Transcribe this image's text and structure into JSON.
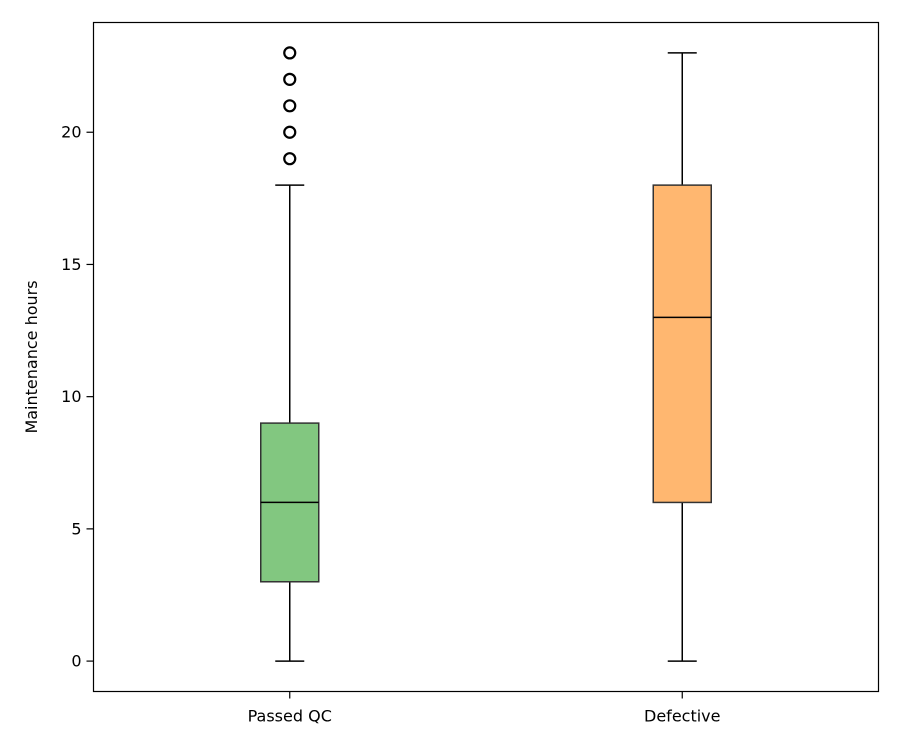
{
  "chart_data": {
    "type": "box",
    "title": "",
    "xlabel": "",
    "ylabel": "Maintenance hours",
    "ylim": [
      -1.15,
      24.15
    ],
    "yticks": [
      0,
      5,
      10,
      15,
      20
    ],
    "ytick_labels": [
      "0",
      "5",
      "10",
      "15",
      "20"
    ],
    "grid": false,
    "categories": [
      "Passed QC",
      "Defective"
    ],
    "boxes": [
      {
        "category": "Passed QC",
        "whisker_low": 0,
        "q1": 3,
        "median": 6,
        "q3": 9,
        "whisker_high": 18,
        "outliers": [
          19,
          20,
          21,
          22,
          23
        ],
        "color": "#4daf4a"
      },
      {
        "category": "Defective",
        "whisker_low": 0,
        "q1": 6,
        "median": 13,
        "q3": 18,
        "whisker_high": 23,
        "outliers": [],
        "color": "#ff9933"
      }
    ]
  }
}
